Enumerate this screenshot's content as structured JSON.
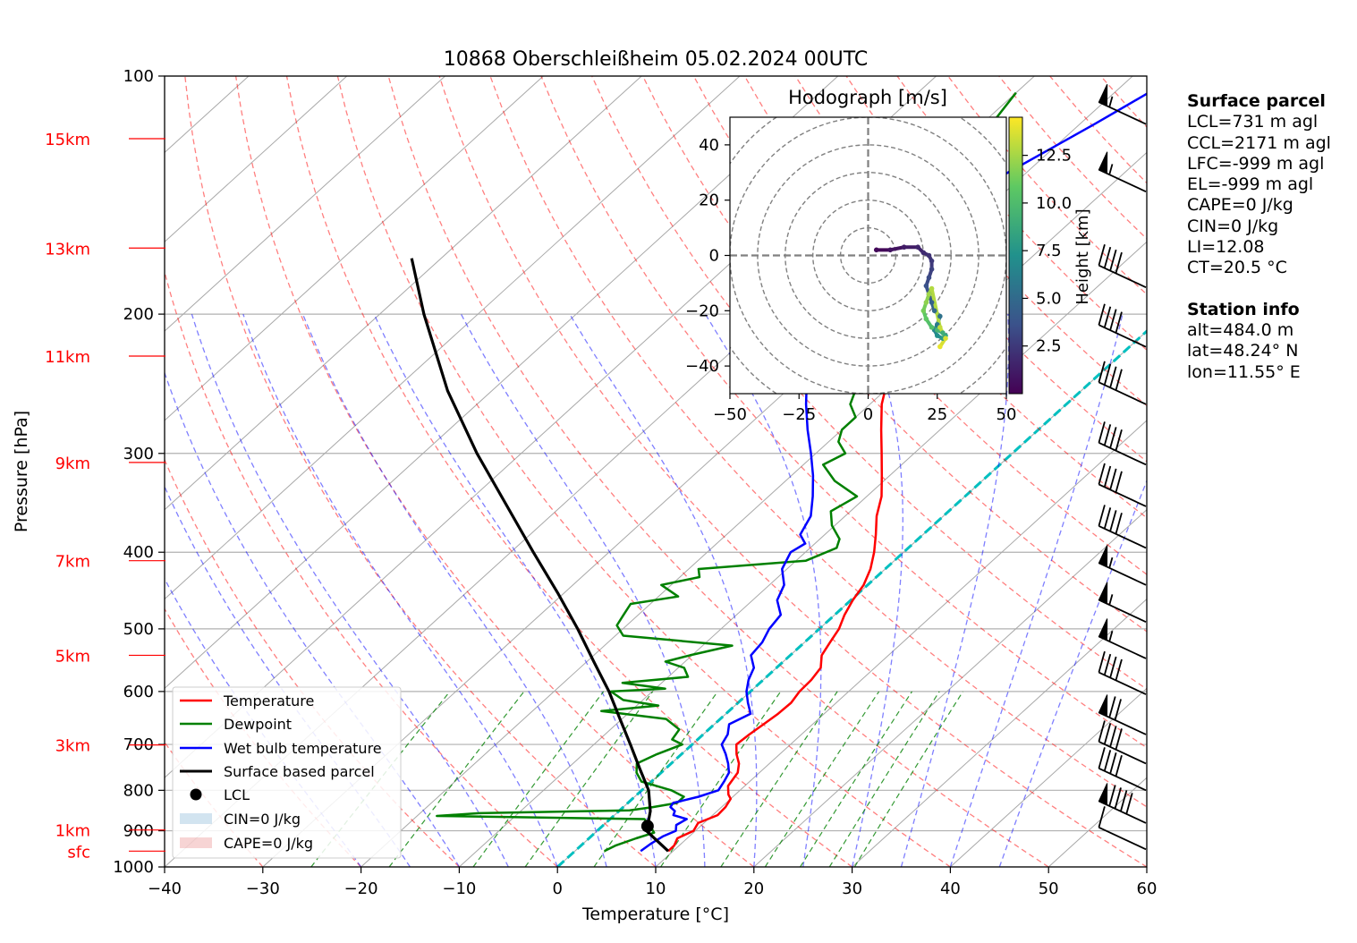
{
  "chart_data": {
    "type": "skew-t",
    "title": "10868 Oberschleißheim 05.02.2024 00UTC",
    "xlabel": "Temperature [°C]",
    "ylabel": "Pressure [hPa]",
    "xlim": [
      -40,
      60
    ],
    "ylim_pressure": [
      1000,
      100
    ],
    "x_ticks": [
      "−40",
      "−30",
      "−20",
      "−10",
      "0",
      "10",
      "20",
      "30",
      "40",
      "50",
      "60"
    ],
    "pressure_ticks": [
      100,
      200,
      300,
      400,
      500,
      600,
      700,
      800,
      900,
      1000
    ],
    "height_labels": [
      {
        "label": "sfc",
        "pressure": 955
      },
      {
        "label": "1km",
        "pressure": 898
      },
      {
        "label": "3km",
        "pressure": 701
      },
      {
        "label": "5km",
        "pressure": 540
      },
      {
        "label": "7km",
        "pressure": 410
      },
      {
        "label": "9km",
        "pressure": 308
      },
      {
        "label": "11km",
        "pressure": 226
      },
      {
        "label": "13km",
        "pressure": 165
      },
      {
        "label": "15km",
        "pressure": 120
      }
    ],
    "series": [
      {
        "name": "Temperature",
        "color": "#ff0000",
        "points": [
          [
            955,
            9.5
          ],
          [
            940,
            9.5
          ],
          [
            920,
            9.0
          ],
          [
            900,
            9.8
          ],
          [
            880,
            9.4
          ],
          [
            860,
            10.5
          ],
          [
            840,
            10.4
          ],
          [
            820,
            10.0
          ],
          [
            810,
            9.3
          ],
          [
            790,
            8.3
          ],
          [
            760,
            7.8
          ],
          [
            740,
            6.9
          ],
          [
            720,
            5.6
          ],
          [
            700,
            4.5
          ],
          [
            680,
            4.7
          ],
          [
            660,
            5.0
          ],
          [
            640,
            5.3
          ],
          [
            620,
            5.4
          ],
          [
            600,
            5.0
          ],
          [
            580,
            4.9
          ],
          [
            560,
            4.5
          ],
          [
            540,
            3.2
          ],
          [
            520,
            2.6
          ],
          [
            500,
            2.0
          ],
          [
            480,
            1.0
          ],
          [
            460,
            0.2
          ],
          [
            440,
            -0.4
          ],
          [
            420,
            -1.5
          ],
          [
            400,
            -3.0
          ],
          [
            380,
            -4.8
          ],
          [
            360,
            -6.8
          ],
          [
            340,
            -8.5
          ],
          [
            320,
            -10.8
          ],
          [
            300,
            -13.3
          ],
          [
            280,
            -16.0
          ],
          [
            260,
            -18.8
          ],
          [
            240,
            -21.2
          ]
        ]
      },
      {
        "name": "Dewpoint",
        "color": "#008000",
        "points": [
          [
            955,
            3.0
          ],
          [
            940,
            3.5
          ],
          [
            920,
            4.8
          ],
          [
            905,
            6.0
          ],
          [
            890,
            5.0
          ],
          [
            870,
            3.5
          ],
          [
            862,
            -18
          ],
          [
            855,
            -14
          ],
          [
            848,
            1
          ],
          [
            840,
            3
          ],
          [
            830,
            5
          ],
          [
            815,
            5
          ],
          [
            800,
            3
          ],
          [
            780,
            -1
          ],
          [
            760,
            -2.5
          ],
          [
            740,
            -3.5
          ],
          [
            720,
            -2.5
          ],
          [
            700,
            -1
          ],
          [
            690,
            -2.6
          ],
          [
            670,
            -3.0
          ],
          [
            650,
            -5.5
          ],
          [
            635,
            -13
          ],
          [
            625,
            -7.8
          ],
          [
            615,
            -12
          ],
          [
            600,
            -14.2
          ],
          [
            595,
            -9
          ],
          [
            585,
            -14
          ],
          [
            575,
            -8
          ],
          [
            560,
            -9.4
          ],
          [
            550,
            -12
          ],
          [
            540,
            -10.2
          ],
          [
            525,
            -7
          ],
          [
            510,
            -19.2
          ],
          [
            495,
            -21
          ],
          [
            480,
            -21.5
          ],
          [
            465,
            -22.0
          ],
          [
            455,
            -18
          ],
          [
            440,
            -21
          ],
          [
            430,
            -18
          ],
          [
            420,
            -19
          ],
          [
            410,
            -9
          ],
          [
            395,
            -7.3
          ],
          [
            385,
            -8
          ],
          [
            370,
            -10.3
          ],
          [
            355,
            -12
          ],
          [
            340,
            -11
          ],
          [
            325,
            -15
          ],
          [
            310,
            -18
          ],
          [
            300,
            -17
          ],
          [
            290,
            -19
          ],
          [
            280,
            -20
          ],
          [
            270,
            -20
          ],
          [
            260,
            -22
          ],
          [
            250,
            -23
          ],
          [
            240,
            -25
          ],
          [
            230,
            -26
          ],
          [
            220,
            -28
          ],
          [
            210,
            -30
          ],
          [
            200,
            -32
          ],
          [
            190,
            -35
          ],
          [
            180,
            -38
          ],
          [
            170,
            -40.5
          ],
          [
            160,
            -40.5
          ],
          [
            150,
            -40.0
          ],
          [
            140,
            -40.5
          ],
          [
            133,
            -37.5
          ],
          [
            125,
            -38.5
          ],
          [
            115,
            -39.0
          ],
          [
            105,
            -40.0
          ]
        ]
      },
      {
        "name": "Wet bulb temperature",
        "color": "#0000ff",
        "points": [
          [
            955,
            6.7
          ],
          [
            935,
            6.9
          ],
          [
            915,
            7.3
          ],
          [
            900,
            8.0
          ],
          [
            885,
            7.4
          ],
          [
            870,
            7.8
          ],
          [
            860,
            6.0
          ],
          [
            850,
            5.7
          ],
          [
            840,
            4.8
          ],
          [
            830,
            4.6
          ],
          [
            815,
            6.5
          ],
          [
            800,
            7.8
          ],
          [
            780,
            7.4
          ],
          [
            760,
            6.9
          ],
          [
            740,
            5.8
          ],
          [
            720,
            4.5
          ],
          [
            700,
            3.0
          ],
          [
            680,
            2.5
          ],
          [
            660,
            1.5
          ],
          [
            640,
            2.5
          ],
          [
            620,
            1.0
          ],
          [
            600,
            -0.4
          ],
          [
            580,
            -1.5
          ],
          [
            560,
            -2.3
          ],
          [
            540,
            -4.0
          ],
          [
            520,
            -4.3
          ],
          [
            500,
            -5.1
          ],
          [
            480,
            -5.5
          ],
          [
            460,
            -7.5
          ],
          [
            440,
            -8.5
          ],
          [
            420,
            -10.5
          ],
          [
            400,
            -11.5
          ],
          [
            390,
            -11.0
          ],
          [
            380,
            -12.5
          ],
          [
            360,
            -13.5
          ],
          [
            340,
            -15.5
          ],
          [
            320,
            -17.8
          ],
          [
            300,
            -20.5
          ],
          [
            280,
            -23.5
          ],
          [
            260,
            -26.5
          ],
          [
            240,
            -29.5
          ],
          [
            220,
            -33.5
          ],
          [
            200,
            -37.0
          ],
          [
            185,
            -38.2
          ],
          [
            175,
            -38.8
          ],
          [
            168,
            -37.5
          ],
          [
            160,
            -37.0
          ],
          [
            152,
            -33.2
          ],
          [
            140,
            -32.3
          ],
          [
            133,
            -32.0
          ],
          [
            125,
            -30.5
          ],
          [
            115,
            -28.5
          ],
          [
            105,
            -26.5
          ]
        ]
      },
      {
        "name": "Surface based parcel",
        "color": "#000000",
        "points": [
          [
            955,
            9.5
          ],
          [
            900,
            5.0
          ],
          [
            888,
            4.6
          ],
          [
            850,
            3.2
          ],
          [
            800,
            0.7
          ],
          [
            750,
            -2.7
          ],
          [
            700,
            -6.3
          ],
          [
            650,
            -10.2
          ],
          [
            600,
            -14.4
          ],
          [
            550,
            -19.3
          ],
          [
            500,
            -24.6
          ],
          [
            450,
            -30.7
          ],
          [
            400,
            -37.7
          ],
          [
            350,
            -45.5
          ],
          [
            300,
            -54.5
          ],
          [
            250,
            -64.5
          ],
          [
            200,
            -75.5
          ],
          [
            170,
            -83.0
          ]
        ]
      }
    ],
    "lcl_marker": {
      "name": "LCL",
      "pressure": 888,
      "temperature": 4.6
    },
    "legend": {
      "placement": "lower-left",
      "entries": [
        "Temperature",
        "Dewpoint",
        "Wet bulb temperature",
        "Surface based parcel",
        "LCL",
        "CIN=0 J/kg",
        "CAPE=0 J/kg"
      ]
    },
    "wind_barbs": [
      {
        "pressure": 950,
        "speed_kt": 10
      },
      {
        "pressure": 880,
        "speed_kt": 90
      },
      {
        "pressure": 800,
        "speed_kt": 40
      },
      {
        "pressure": 740,
        "speed_kt": 40
      },
      {
        "pressure": 680,
        "speed_kt": 70
      },
      {
        "pressure": 605,
        "speed_kt": 40
      },
      {
        "pressure": 545,
        "speed_kt": 55
      },
      {
        "pressure": 490,
        "speed_kt": 55
      },
      {
        "pressure": 440,
        "speed_kt": 55
      },
      {
        "pressure": 395,
        "speed_kt": 40
      },
      {
        "pressure": 350,
        "speed_kt": 40
      },
      {
        "pressure": 310,
        "speed_kt": 40
      },
      {
        "pressure": 260,
        "speed_kt": 40
      },
      {
        "pressure": 220,
        "speed_kt": 40
      },
      {
        "pressure": 185,
        "speed_kt": 40
      },
      {
        "pressure": 140,
        "speed_kt": 55
      },
      {
        "pressure": 115,
        "speed_kt": 55
      }
    ],
    "hodograph": {
      "title": "Hodograph [m/s]",
      "xlim": [
        -50,
        50
      ],
      "ylim": [
        -50,
        50
      ],
      "ticks": [
        -50,
        -25,
        0,
        25,
        50
      ],
      "yticks": [
        -40,
        -20,
        0,
        20,
        40
      ],
      "x_tick_labels": [
        "−50",
        "−25",
        "0",
        "25",
        "50"
      ],
      "y_tick_labels": [
        "−40",
        "−20",
        "0",
        "20",
        "40"
      ],
      "colorbar_label": "Height [km]",
      "colorbar_ticks": [
        2.5,
        5.0,
        7.5,
        10.0,
        12.5
      ],
      "colorbar_tick_labels": [
        "2.5",
        "5.0",
        "7.5",
        "10.0",
        "12.5"
      ],
      "colorbar_range": [
        0,
        14.5
      ],
      "points": [
        [
          3,
          2,
          0.3
        ],
        [
          8,
          2,
          0.8
        ],
        [
          13,
          3,
          1.2
        ],
        [
          18,
          3,
          1.6
        ],
        [
          20,
          1,
          1.9
        ],
        [
          22,
          0,
          2.2
        ],
        [
          23,
          -2,
          2.5
        ],
        [
          23,
          -5,
          2.9
        ],
        [
          22,
          -8,
          3.3
        ],
        [
          21,
          -11,
          3.7
        ],
        [
          22,
          -14,
          4.1
        ],
        [
          23,
          -17,
          4.5
        ],
        [
          24,
          -20,
          4.9
        ],
        [
          26,
          -22,
          5.4
        ],
        [
          25,
          -25,
          6
        ],
        [
          24,
          -27,
          6.6
        ],
        [
          25,
          -29,
          7.2
        ],
        [
          27,
          -30,
          7.8
        ],
        [
          28,
          -29,
          8.4
        ],
        [
          27,
          -28,
          9
        ],
        [
          25,
          -27,
          9.6
        ],
        [
          23,
          -26,
          10.2
        ],
        [
          21,
          -23,
          10.8
        ],
        [
          20,
          -20,
          11.4
        ],
        [
          21,
          -17,
          12
        ],
        [
          22,
          -14,
          12.4
        ],
        [
          23,
          -12,
          12.8
        ],
        [
          26,
          -26,
          13.2
        ],
        [
          28,
          -30,
          13.6
        ],
        [
          26,
          -33,
          14
        ]
      ]
    }
  },
  "info_panel": {
    "surface_parcel_title": "Surface parcel",
    "lcl": "LCL=731 m agl",
    "ccl": "CCL=2171 m agl",
    "lfc": "LFC=-999 m agl",
    "el": "EL=-999 m agl",
    "cape": "CAPE=0 J/kg",
    "cin": "CIN=0 J/kg",
    "li": "LI=12.08",
    "ct": "CT=20.5 °C",
    "station_title": "Station info",
    "alt": "alt=484.0 m",
    "lat": "lat=48.24° N",
    "lon": "lon=11.55° E"
  }
}
